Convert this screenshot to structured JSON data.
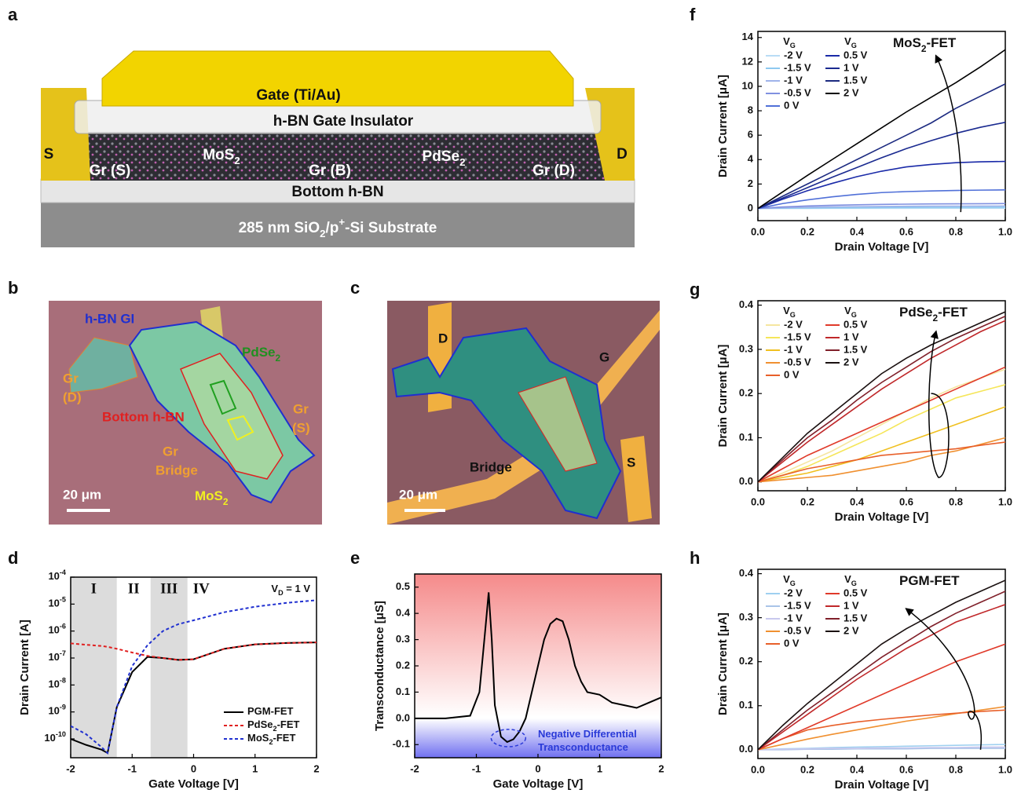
{
  "panel_a": {
    "panel": "a",
    "gate": "Gate (Ti/Au)",
    "insulator": "h-BN Gate Insulator",
    "source": "S",
    "drain": "D",
    "gr_s": "Gr (S)",
    "mos2": "MoS2",
    "gr_b": "Gr (B)",
    "pdse2": "PdSe2",
    "gr_d": "Gr (D)",
    "bottom": "Bottom h-BN",
    "substrate": "285 nm SiO2/p+-Si Substrate"
  },
  "panel_b": {
    "panel": "b",
    "gi": "h-BN GI",
    "pdse2": "PdSe2",
    "gr_d": [
      "Gr",
      "(D)"
    ],
    "bottom": "Bottom h-BN",
    "gr_s": [
      "Gr",
      "(S)"
    ],
    "bridge": [
      "Gr",
      "Bridge"
    ],
    "scale": "20 μm",
    "mos2": "MoS2"
  },
  "panel_c": {
    "panel": "c",
    "drain": "D",
    "gate": "G",
    "bridge": "Bridge",
    "source": "S",
    "scale": "20 μm"
  },
  "chart_data": [
    {
      "type": "line",
      "panel": "d",
      "xlabel": "Gate Voltage [V]",
      "ylabel": "Drain Current [A]",
      "log_y": true,
      "xlim": [
        -2,
        2
      ],
      "ylim": [
        2e-11,
        0.0001
      ],
      "xticks": [
        -2,
        -1,
        0,
        1,
        2
      ],
      "yticks": [
        {
          "value": 0.0001,
          "label": "10-4"
        },
        {
          "value": 1e-05,
          "label": "10-5"
        },
        {
          "value": 1e-06,
          "label": "10-6"
        },
        {
          "value": 1e-07,
          "label": "10-7"
        },
        {
          "value": 1e-08,
          "label": "10-8"
        },
        {
          "value": 1e-09,
          "label": "10-9"
        },
        {
          "value": 1e-10,
          "label": "10-10"
        }
      ],
      "regions": [
        {
          "label": "I",
          "range": [
            -2,
            -1.25
          ],
          "shaded": true
        },
        {
          "label": "II",
          "range": [
            -1.25,
            -0.7
          ],
          "shaded": false
        },
        {
          "label": "III",
          "range": [
            -0.7,
            -0.1
          ],
          "shaded": true
        },
        {
          "label": "IV",
          "range": [
            -0.1,
            2
          ],
          "shaded": false
        }
      ],
      "annotation": "VD = 1 V",
      "legend": "lower right",
      "x": [
        -2,
        -1.75,
        -1.5,
        -1.4,
        -1.25,
        -1,
        -0.75,
        -0.5,
        -0.25,
        0,
        0.5,
        1,
        1.5,
        2
      ],
      "series": [
        {
          "name": "PGM-FET",
          "color": "#000000",
          "line_style": "solid",
          "values": [
            1e-10,
            6e-11,
            4e-11,
            3e-11,
            1.5e-09,
            3e-08,
            1.1e-07,
            1e-07,
            8.5e-08,
            9e-08,
            2.2e-07,
            3.2e-07,
            3.6e-07,
            3.8e-07
          ]
        },
        {
          "name": "PdSe2-FET",
          "color": "#e02020",
          "line_style": "dashed",
          "values": [
            3.5e-07,
            3.1e-07,
            2.8e-07,
            2.6e-07,
            2.2e-07,
            1.6e-07,
            1.2e-07,
            1e-07,
            8.5e-08,
            9e-08,
            2.2e-07,
            3.2e-07,
            3.6e-07,
            3.8e-07
          ]
        },
        {
          "name": "MoS2-FET",
          "color": "#2030d0",
          "line_style": "dashed",
          "values": [
            3e-10,
            1.5e-10,
            5e-11,
            3e-11,
            1.5e-09,
            5e-08,
            3e-07,
            1e-06,
            1.8e-06,
            2.5e-06,
            5e-06,
            8e-06,
            1.1e-05,
            1.4e-05
          ]
        }
      ]
    },
    {
      "type": "line",
      "panel": "e",
      "xlabel": "Gate Voltage [V]",
      "ylabel": "Transconductance [μS]",
      "xlim": [
        -2,
        2
      ],
      "ylim": [
        -0.15,
        0.55
      ],
      "xticks": [
        -2,
        -1,
        0,
        1,
        2
      ],
      "yticks": [
        -0.1,
        {
          "value": 0,
          "label": "0.0"
        },
        0.1,
        0.2,
        0.3,
        0.4,
        0.5
      ],
      "background": {
        "positive": "#f58a8a",
        "negative": "#6f6ff0"
      },
      "annotation": [
        "Negative Differential",
        "Transconductance"
      ],
      "annotation_color": "#2a3ad8",
      "color": "#000000",
      "x": [
        -2,
        -1.5,
        -1.1,
        -0.95,
        -0.85,
        -0.8,
        -0.75,
        -0.7,
        -0.6,
        -0.5,
        -0.4,
        -0.3,
        -0.2,
        0,
        0.1,
        0.2,
        0.3,
        0.4,
        0.5,
        0.6,
        0.7,
        0.8,
        1,
        1.2,
        1.4,
        1.6,
        1.8,
        2
      ],
      "values": [
        0,
        0,
        0.01,
        0.1,
        0.35,
        0.48,
        0.3,
        0.05,
        -0.07,
        -0.09,
        -0.08,
        -0.05,
        0,
        0.2,
        0.3,
        0.36,
        0.38,
        0.37,
        0.3,
        0.2,
        0.14,
        0.1,
        0.09,
        0.06,
        0.05,
        0.04,
        0.06,
        0.08
      ]
    },
    {
      "type": "line",
      "panel": "f",
      "xlabel": "Drain Voltage [V]",
      "ylabel": "Drain Current [μA]",
      "annotation": "MoS2-FET",
      "xlim": [
        0,
        1
      ],
      "ylim": [
        -1,
        14.5
      ],
      "xticks": [
        {
          "value": 0,
          "label": "0.0"
        },
        0.2,
        0.4,
        0.6,
        0.8,
        {
          "value": 1,
          "label": "1.0"
        }
      ],
      "yticks": [
        0,
        2,
        4,
        6,
        8,
        10,
        12,
        14
      ],
      "legend": "upper left",
      "legend_titles": [
        "VG",
        "VG"
      ],
      "x": [
        0,
        0.1,
        0.2,
        0.3,
        0.4,
        0.5,
        0.6,
        0.7,
        0.8,
        0.9,
        1
      ],
      "series": [
        {
          "name": "-2 V",
          "color": "#b9dcf5",
          "values": [
            0,
            0.002,
            0.004,
            0.006,
            0.008,
            0.01,
            0.012,
            0.014,
            0.016,
            0.018,
            0.02
          ]
        },
        {
          "name": "-1.5 V",
          "color": "#8ec9f0",
          "values": [
            0,
            0.02,
            0.035,
            0.05,
            0.06,
            0.07,
            0.08,
            0.085,
            0.09,
            0.095,
            0.1
          ]
        },
        {
          "name": "-1 V",
          "color": "#9fb3ea",
          "values": [
            0,
            0.06,
            0.1,
            0.13,
            0.15,
            0.165,
            0.175,
            0.185,
            0.19,
            0.195,
            0.2
          ]
        },
        {
          "name": "-0.5 V",
          "color": "#8090e0",
          "values": [
            0,
            0.12,
            0.2,
            0.26,
            0.3,
            0.33,
            0.35,
            0.37,
            0.38,
            0.39,
            0.4
          ]
        },
        {
          "name": "0 V",
          "color": "#5070d8",
          "values": [
            0,
            0.4,
            0.7,
            0.95,
            1.15,
            1.3,
            1.38,
            1.43,
            1.47,
            1.5,
            1.52
          ]
        },
        {
          "name": "0.5 V",
          "color": "#1a2aa8",
          "values": [
            0,
            0.75,
            1.45,
            2.05,
            2.6,
            3.05,
            3.4,
            3.6,
            3.75,
            3.82,
            3.85
          ]
        },
        {
          "name": "1 V",
          "color": "#1a2a90",
          "values": [
            0,
            0.85,
            1.7,
            2.55,
            3.35,
            4.15,
            4.9,
            5.55,
            6.15,
            6.65,
            7.05
          ]
        },
        {
          "name": "1.5 V",
          "color": "#1c2a80",
          "values": [
            0,
            1,
            2,
            3,
            4,
            5,
            6,
            7,
            8.2,
            9.2,
            10.2
          ]
        },
        {
          "name": "2 V",
          "color": "#000000",
          "values": [
            0,
            1.35,
            2.7,
            4,
            5.3,
            6.6,
            7.9,
            9.1,
            10.3,
            11.6,
            13
          ]
        }
      ]
    },
    {
      "type": "line",
      "panel": "g",
      "xlabel": "Drain Voltage [V]",
      "ylabel": "Drain Current [μA]",
      "annotation": "PdSe2-FET",
      "xlim": [
        0,
        1
      ],
      "ylim": [
        -0.02,
        0.41
      ],
      "xticks": [
        {
          "value": 0,
          "label": "0.0"
        },
        0.2,
        0.4,
        0.6,
        0.8,
        {
          "value": 1,
          "label": "1.0"
        }
      ],
      "yticks": [
        {
          "value": 0,
          "label": "0.0"
        },
        0.1,
        0.2,
        0.3,
        0.4
      ],
      "legend": "upper left",
      "legend_titles": [
        "VG",
        "VG"
      ],
      "x": [
        0,
        0.1,
        0.2,
        0.3,
        0.4,
        0.5,
        0.6,
        0.7,
        0.8,
        0.9,
        1
      ],
      "series": [
        {
          "name": "-2 V",
          "color": "#f5e6a0",
          "values": [
            0,
            0.02,
            0.045,
            0.07,
            0.1,
            0.13,
            0.16,
            0.19,
            0.215,
            0.235,
            0.255
          ]
        },
        {
          "name": "-1.5 V",
          "color": "#f5e65a",
          "values": [
            0,
            0.015,
            0.035,
            0.06,
            0.085,
            0.11,
            0.14,
            0.165,
            0.19,
            0.205,
            0.22
          ]
        },
        {
          "name": "-1 V",
          "color": "#f0c020",
          "values": [
            0,
            0.01,
            0.02,
            0.035,
            0.05,
            0.07,
            0.09,
            0.11,
            0.13,
            0.15,
            0.17
          ]
        },
        {
          "name": "-0.5 V",
          "color": "#f09030",
          "values": [
            0,
            0.005,
            0.01,
            0.015,
            0.025,
            0.035,
            0.045,
            0.06,
            0.07,
            0.085,
            0.1
          ]
        },
        {
          "name": "0 V",
          "color": "#e8602a",
          "values": [
            0,
            0.015,
            0.03,
            0.04,
            0.05,
            0.06,
            0.065,
            0.07,
            0.075,
            0.083,
            0.09
          ]
        },
        {
          "name": "0.5 V",
          "color": "#e03a2a",
          "values": [
            0,
            0.03,
            0.06,
            0.085,
            0.11,
            0.135,
            0.16,
            0.185,
            0.21,
            0.235,
            0.26
          ]
        },
        {
          "name": "1 V",
          "color": "#c0282a",
          "values": [
            0,
            0.045,
            0.09,
            0.13,
            0.17,
            0.21,
            0.245,
            0.28,
            0.31,
            0.34,
            0.365
          ]
        },
        {
          "name": "1.5 V",
          "color": "#80202a",
          "values": [
            0,
            0.05,
            0.1,
            0.14,
            0.185,
            0.225,
            0.26,
            0.295,
            0.325,
            0.35,
            0.375
          ]
        },
        {
          "name": "2 V",
          "color": "#1a1010",
          "values": [
            0,
            0.055,
            0.11,
            0.155,
            0.2,
            0.245,
            0.28,
            0.31,
            0.335,
            0.36,
            0.385
          ]
        }
      ]
    },
    {
      "type": "line",
      "panel": "h",
      "xlabel": "Drain Voltage [V]",
      "ylabel": "Drain Current [μA]",
      "annotation": "PGM-FET",
      "xlim": [
        0,
        1
      ],
      "ylim": [
        -0.02,
        0.41
      ],
      "xticks": [
        {
          "value": 0,
          "label": "0.0"
        },
        0.2,
        0.4,
        0.6,
        0.8,
        {
          "value": 1,
          "label": "1.0"
        }
      ],
      "yticks": [
        {
          "value": 0,
          "label": "0.0"
        },
        0.1,
        0.2,
        0.3,
        0.4
      ],
      "legend": "upper left",
      "legend_titles": [
        "VG",
        "VG"
      ],
      "x": [
        0,
        0.1,
        0.2,
        0.3,
        0.4,
        0.5,
        0.6,
        0.7,
        0.8,
        0.9,
        1
      ],
      "series": [
        {
          "name": "-2 V",
          "color": "#9fd0f0",
          "values": [
            0,
            0.002,
            0.003,
            0.005,
            0.006,
            0.007,
            0.008,
            0.009,
            0.01,
            0.011,
            0.012
          ]
        },
        {
          "name": "-1.5 V",
          "color": "#a9c4e8",
          "values": [
            0,
            0,
            0.001,
            0.001,
            0.002,
            0.002,
            0.002,
            0.003,
            0.003,
            0.003,
            0.003
          ]
        },
        {
          "name": "-1 V",
          "color": "#c8c8ee",
          "values": [
            0,
            0.001,
            0.002,
            0.003,
            0.003,
            0.004,
            0.004,
            0.005,
            0.005,
            0.006,
            0.006
          ]
        },
        {
          "name": "-0.5 V",
          "color": "#f09030",
          "values": [
            0,
            0.012,
            0.024,
            0.035,
            0.045,
            0.055,
            0.065,
            0.073,
            0.082,
            0.09,
            0.098
          ]
        },
        {
          "name": "0 V",
          "color": "#e8602a",
          "values": [
            0,
            0.025,
            0.045,
            0.055,
            0.063,
            0.069,
            0.074,
            0.079,
            0.083,
            0.087,
            0.09
          ]
        },
        {
          "name": "0.5 V",
          "color": "#e03a2a",
          "values": [
            0,
            0.025,
            0.05,
            0.075,
            0.1,
            0.125,
            0.15,
            0.175,
            0.2,
            0.22,
            0.24
          ]
        },
        {
          "name": "1 V",
          "color": "#c0282a",
          "values": [
            0,
            0.04,
            0.08,
            0.12,
            0.16,
            0.195,
            0.23,
            0.26,
            0.29,
            0.31,
            0.33
          ]
        },
        {
          "name": "1.5 V",
          "color": "#80202a",
          "values": [
            0,
            0.045,
            0.09,
            0.13,
            0.17,
            0.21,
            0.245,
            0.28,
            0.31,
            0.335,
            0.36
          ]
        },
        {
          "name": "2 V",
          "color": "#1a1010",
          "values": [
            0,
            0.055,
            0.105,
            0.15,
            0.195,
            0.24,
            0.275,
            0.305,
            0.335,
            0.36,
            0.385
          ]
        }
      ]
    }
  ]
}
